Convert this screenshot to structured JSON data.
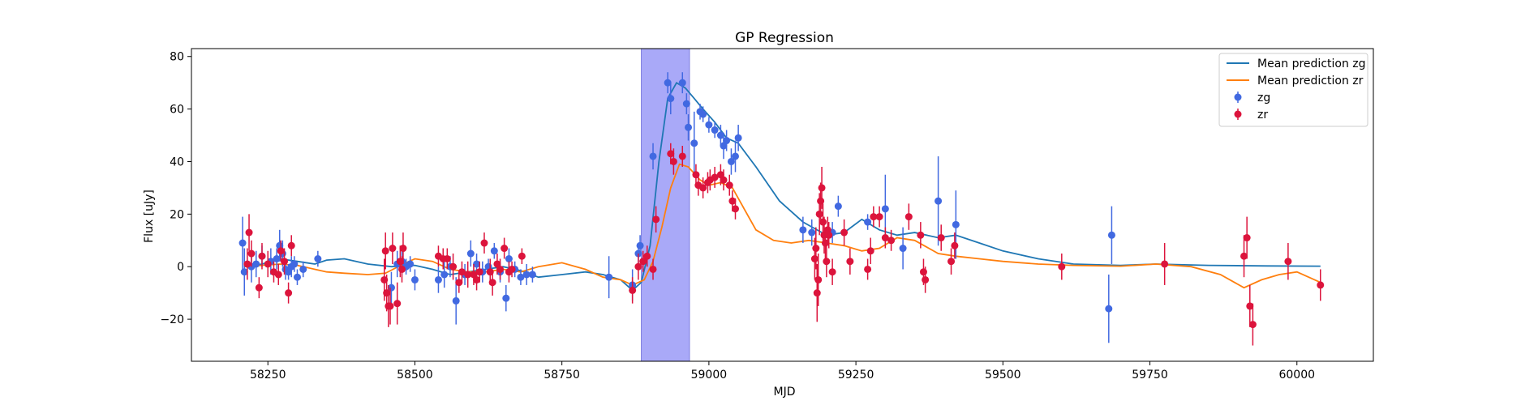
{
  "chart_data": {
    "type": "scatter",
    "title": "GP Regression",
    "xlabel": "MJD",
    "ylabel": "Flux [uJy]",
    "xlim": [
      58120,
      60130
    ],
    "ylim": [
      -36,
      83
    ],
    "xticks": [
      58250,
      58500,
      58750,
      59000,
      59250,
      59500,
      59750,
      60000
    ],
    "yticks": [
      -20,
      0,
      20,
      40,
      60,
      80
    ],
    "grid": false,
    "legend_position": "top-right",
    "shaded_region": {
      "x_start": 58885,
      "x_end": 58967,
      "color": "#a9a9f8"
    },
    "series": [
      {
        "name": "Mean prediction zg",
        "kind": "line",
        "color": "#1f77b4",
        "x": [
          58210,
          58240,
          58270,
          58300,
          58330,
          58350,
          58380,
          58420,
          58460,
          58500,
          58530,
          58560,
          58590,
          58620,
          58650,
          58680,
          58710,
          58750,
          58790,
          58820,
          58850,
          58870,
          58885,
          58900,
          58915,
          58930,
          58945,
          58960,
          58975,
          58990,
          59010,
          59030,
          59050,
          59080,
          59120,
          59160,
          59200,
          59230,
          59260,
          59290,
          59320,
          59350,
          59390,
          59420,
          59460,
          59500,
          59560,
          59620,
          59700,
          59760,
          59850,
          59950,
          60040
        ],
        "y": [
          0,
          1,
          3,
          2,
          1,
          2.5,
          3,
          1,
          0,
          0.5,
          -1,
          -3,
          -2,
          -1,
          0,
          -1.5,
          -4,
          -3,
          -2,
          -3,
          -5,
          -9,
          -6,
          8,
          40,
          64,
          70,
          68,
          64,
          60,
          55,
          49,
          47,
          38,
          25,
          17,
          12,
          13,
          18,
          14,
          12,
          13,
          11,
          12,
          9,
          6,
          3,
          1,
          0.5,
          1,
          0.5,
          0.3,
          0.2
        ]
      },
      {
        "name": "Mean prediction zr",
        "kind": "line",
        "color": "#ff7f0e",
        "x": [
          58210,
          58240,
          58270,
          58300,
          58330,
          58350,
          58380,
          58420,
          58450,
          58480,
          58500,
          58530,
          58560,
          58590,
          58620,
          58650,
          58680,
          58710,
          58750,
          58790,
          58820,
          58850,
          58870,
          58890,
          58905,
          58920,
          58935,
          58950,
          58965,
          58985,
          59000,
          59020,
          59040,
          59060,
          59080,
          59110,
          59140,
          59170,
          59200,
          59230,
          59260,
          59290,
          59320,
          59350,
          59390,
          59420,
          59460,
          59500,
          59560,
          59620,
          59700,
          59760,
          59820,
          59870,
          59910,
          59940,
          59970,
          60000,
          60040
        ],
        "y": [
          0,
          0.5,
          1,
          0.5,
          -1,
          -2,
          -2.5,
          -3,
          -2.5,
          1,
          3,
          2,
          -1,
          -2,
          -2,
          -1,
          -2,
          0,
          1.5,
          -1,
          -4,
          -5,
          -7,
          -5,
          2,
          15,
          30,
          39,
          38,
          33,
          31,
          32,
          30,
          22,
          14,
          10,
          9,
          10,
          9,
          8,
          6,
          7,
          11,
          10,
          5,
          4,
          3,
          2,
          1,
          0.5,
          0.2,
          1,
          0,
          -3,
          -8,
          -5,
          -3,
          -2,
          -6
        ]
      },
      {
        "name": "zg",
        "kind": "errorbar",
        "color": "#4169e1",
        "points": [
          [
            58207,
            9,
            10
          ],
          [
            58210,
            -2,
            9
          ],
          [
            58222,
            0,
            6
          ],
          [
            58230,
            1,
            5
          ],
          [
            58240,
            4,
            4
          ],
          [
            58255,
            2,
            5
          ],
          [
            58265,
            3,
            4
          ],
          [
            58270,
            8,
            6
          ],
          [
            58275,
            5,
            5
          ],
          [
            58280,
            -1,
            4
          ],
          [
            58285,
            -2,
            3
          ],
          [
            58290,
            0,
            4
          ],
          [
            58295,
            1,
            3
          ],
          [
            58300,
            -4,
            3
          ],
          [
            58310,
            -1,
            3
          ],
          [
            58335,
            3,
            3
          ],
          [
            58460,
            -8,
            6
          ],
          [
            58470,
            1,
            5
          ],
          [
            58478,
            2,
            4
          ],
          [
            58485,
            0,
            3
          ],
          [
            58492,
            1,
            3
          ],
          [
            58500,
            -5,
            4
          ],
          [
            58540,
            -5,
            5
          ],
          [
            58550,
            -3,
            5
          ],
          [
            58560,
            0,
            4
          ],
          [
            58570,
            -13,
            9
          ],
          [
            58585,
            -3,
            4
          ],
          [
            58595,
            5,
            5
          ],
          [
            58605,
            1,
            4
          ],
          [
            58615,
            -2,
            4
          ],
          [
            58625,
            0,
            3
          ],
          [
            58635,
            6,
            3
          ],
          [
            58645,
            -2,
            4
          ],
          [
            58655,
            -12,
            5
          ],
          [
            58660,
            3,
            4
          ],
          [
            58670,
            -1,
            3
          ],
          [
            58680,
            -4,
            3
          ],
          [
            58690,
            -3,
            4
          ],
          [
            58700,
            -3,
            3
          ],
          [
            58830,
            -4,
            8
          ],
          [
            58870,
            -7,
            6
          ],
          [
            58880,
            5,
            4
          ],
          [
            58883,
            8,
            4
          ],
          [
            58905,
            42,
            5
          ],
          [
            58930,
            70,
            4
          ],
          [
            58935,
            64,
            6
          ],
          [
            58955,
            70,
            4
          ],
          [
            58962,
            62,
            4
          ],
          [
            58965,
            53,
            5
          ],
          [
            58975,
            47,
            12
          ],
          [
            58985,
            59,
            3
          ],
          [
            58990,
            58,
            3
          ],
          [
            59000,
            54,
            3
          ],
          [
            59010,
            52,
            3
          ],
          [
            59020,
            50,
            4
          ],
          [
            59025,
            46,
            5
          ],
          [
            59030,
            48,
            4
          ],
          [
            59038,
            40,
            5
          ],
          [
            59045,
            42,
            6
          ],
          [
            59050,
            49,
            5
          ],
          [
            59160,
            14,
            5
          ],
          [
            59175,
            13,
            5
          ],
          [
            59210,
            13,
            4
          ],
          [
            59220,
            23,
            4
          ],
          [
            59270,
            17,
            3
          ],
          [
            59300,
            22,
            13
          ],
          [
            59330,
            7,
            8
          ],
          [
            59390,
            25,
            17
          ],
          [
            59420,
            16,
            13
          ],
          [
            59680,
            -16,
            13
          ],
          [
            59685,
            12,
            11
          ]
        ]
      },
      {
        "name": "zr",
        "kind": "errorbar",
        "color": "#dc143c",
        "points": [
          [
            58215,
            1,
            6
          ],
          [
            58218,
            13,
            7
          ],
          [
            58222,
            5,
            5
          ],
          [
            58235,
            -8,
            4
          ],
          [
            58240,
            4,
            5
          ],
          [
            58250,
            1,
            5
          ],
          [
            58260,
            -2,
            4
          ],
          [
            58268,
            -3,
            4
          ],
          [
            58272,
            6,
            4
          ],
          [
            58278,
            2,
            5
          ],
          [
            58285,
            -10,
            4
          ],
          [
            58290,
            8,
            4
          ],
          [
            58448,
            -5,
            8
          ],
          [
            58450,
            6,
            7
          ],
          [
            58452,
            -10,
            7
          ],
          [
            58455,
            -15,
            8
          ],
          [
            58458,
            -15,
            7
          ],
          [
            58462,
            7,
            6
          ],
          [
            58470,
            -14,
            8
          ],
          [
            58475,
            2,
            6
          ],
          [
            58478,
            -1,
            5
          ],
          [
            58480,
            7,
            6
          ],
          [
            58540,
            4,
            4
          ],
          [
            58548,
            3,
            4
          ],
          [
            58555,
            3,
            4
          ],
          [
            58565,
            0,
            5
          ],
          [
            58575,
            -6,
            4
          ],
          [
            58580,
            -2,
            4
          ],
          [
            58590,
            -3,
            5
          ],
          [
            58600,
            -3,
            4
          ],
          [
            58605,
            -5,
            4
          ],
          [
            58610,
            -2,
            4
          ],
          [
            58618,
            9,
            4
          ],
          [
            58628,
            -2,
            5
          ],
          [
            58632,
            -6,
            5
          ],
          [
            58640,
            1,
            4
          ],
          [
            58645,
            -1,
            4
          ],
          [
            58652,
            7,
            4
          ],
          [
            58660,
            -2,
            4
          ],
          [
            58665,
            -1,
            3
          ],
          [
            58682,
            4,
            3
          ],
          [
            58870,
            -9,
            5
          ],
          [
            58880,
            0,
            5
          ],
          [
            58888,
            2,
            4
          ],
          [
            58895,
            4,
            4
          ],
          [
            58905,
            -1,
            4
          ],
          [
            58910,
            18,
            5
          ],
          [
            58935,
            43,
            4
          ],
          [
            58940,
            40,
            5
          ],
          [
            58955,
            42,
            4
          ],
          [
            58978,
            35,
            4
          ],
          [
            58982,
            31,
            4
          ],
          [
            58990,
            30,
            4
          ],
          [
            58998,
            32,
            4
          ],
          [
            59002,
            33,
            4
          ],
          [
            59010,
            34,
            4
          ],
          [
            59020,
            35,
            4
          ],
          [
            59025,
            33,
            4
          ],
          [
            59035,
            31,
            4
          ],
          [
            59040,
            25,
            4
          ],
          [
            59045,
            22,
            4
          ],
          [
            59180,
            3,
            8
          ],
          [
            59182,
            7,
            8
          ],
          [
            59184,
            -10,
            11
          ],
          [
            59186,
            -5,
            10
          ],
          [
            59188,
            20,
            8
          ],
          [
            59190,
            25,
            7
          ],
          [
            59192,
            30,
            8
          ],
          [
            59194,
            17,
            7
          ],
          [
            59196,
            12,
            7
          ],
          [
            59198,
            9,
            6
          ],
          [
            59200,
            2,
            6
          ],
          [
            59202,
            14,
            5
          ],
          [
            59204,
            12,
            5
          ],
          [
            59210,
            -2,
            5
          ],
          [
            59230,
            13,
            5
          ],
          [
            59240,
            2,
            5
          ],
          [
            59270,
            -1,
            4
          ],
          [
            59275,
            6,
            5
          ],
          [
            59280,
            19,
            4
          ],
          [
            59290,
            19,
            4
          ],
          [
            59300,
            11,
            4
          ],
          [
            59310,
            10,
            4
          ],
          [
            59340,
            19,
            5
          ],
          [
            59360,
            12,
            5
          ],
          [
            59365,
            -2,
            5
          ],
          [
            59368,
            -5,
            5
          ],
          [
            59395,
            11,
            5
          ],
          [
            59412,
            2,
            5
          ],
          [
            59418,
            8,
            5
          ],
          [
            59600,
            0,
            5
          ],
          [
            59775,
            1,
            8
          ],
          [
            59910,
            4,
            8
          ],
          [
            59915,
            11,
            8
          ],
          [
            59920,
            -15,
            8
          ],
          [
            59925,
            -22,
            8
          ],
          [
            59985,
            2,
            7
          ],
          [
            60040,
            -7,
            6
          ]
        ]
      }
    ]
  }
}
